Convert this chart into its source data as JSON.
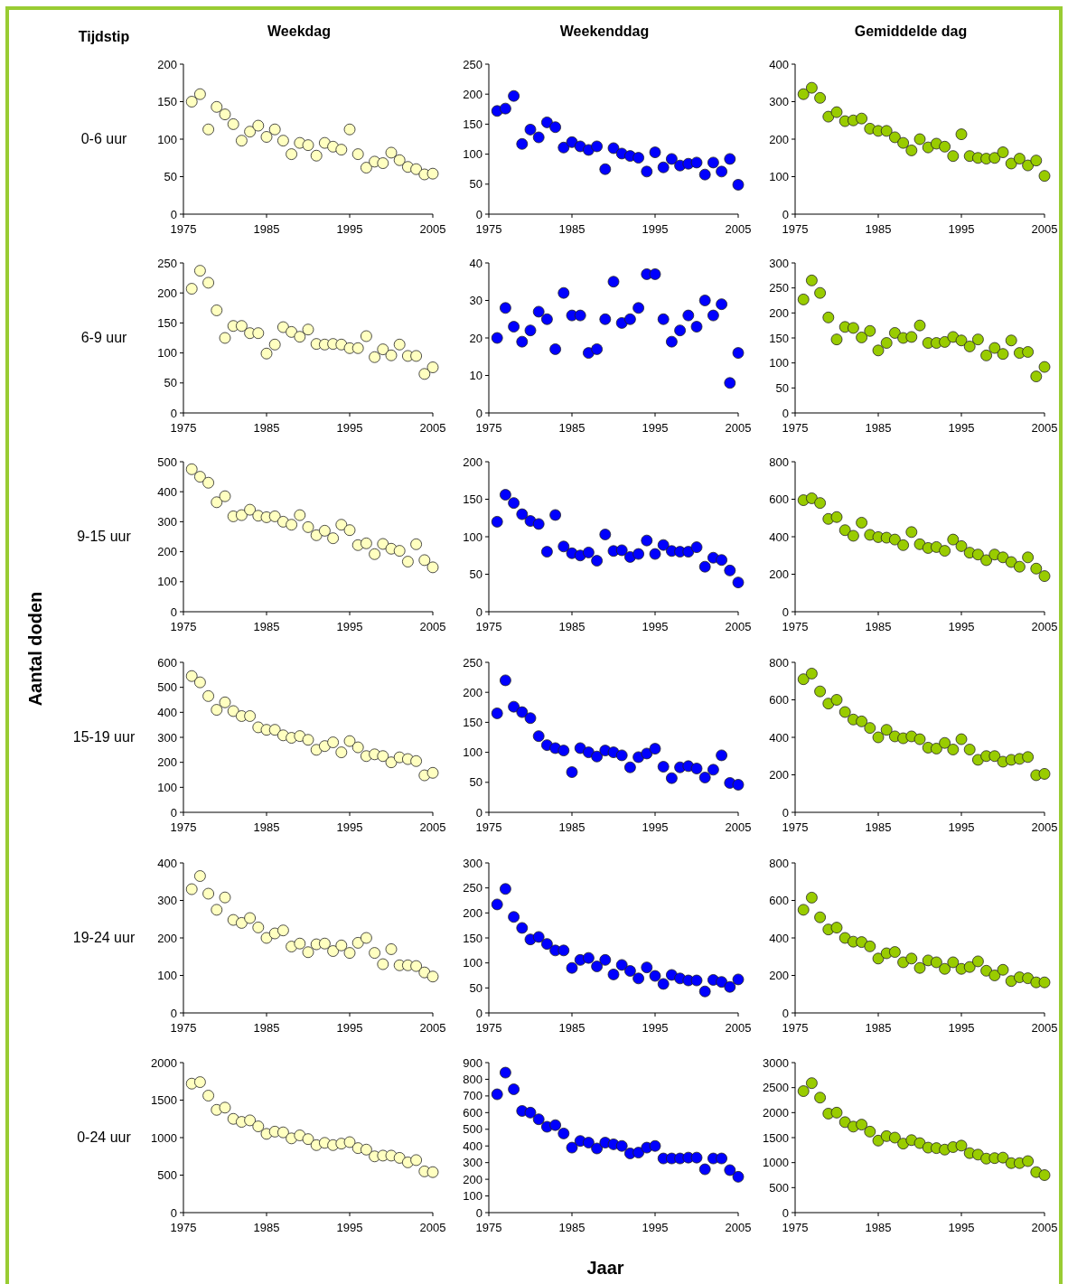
{
  "chart_data": [
    {
      "type": "scatter",
      "title": "Weekdag",
      "ylabel": "0-6 uur",
      "annotations": [
        "Tijdstip",
        "Aantal doden",
        "Jaar"
      ],
      "marker": "circle",
      "xlim": [
        1975,
        2005
      ],
      "xticks": [
        1975,
        1985,
        1995,
        2005
      ],
      "ylim": [
        0,
        200
      ],
      "yticks": [
        0,
        50,
        100,
        150,
        200
      ],
      "x": [
        1976,
        1977,
        1978,
        1979,
        1980,
        1981,
        1982,
        1983,
        1984,
        1985,
        1986,
        1987,
        1988,
        1989,
        1990,
        1991,
        1992,
        1993,
        1994,
        1995,
        1996,
        1997,
        1998,
        1999,
        2000,
        2001,
        2002,
        2003,
        2004,
        2005
      ],
      "color": "#ffffc0",
      "values": [
        150,
        160,
        113,
        143,
        133,
        120,
        98,
        110,
        118,
        103,
        113,
        98,
        80,
        95,
        92,
        78,
        95,
        90,
        86,
        113,
        80,
        62,
        70,
        68,
        82,
        72,
        63,
        60,
        53,
        54
      ]
    },
    {
      "type": "scatter",
      "title": "Weekenddag",
      "marker": "circle",
      "xlim": [
        1975,
        2005
      ],
      "xticks": [
        1975,
        1985,
        1995,
        2005
      ],
      "ylim": [
        0,
        250
      ],
      "yticks": [
        0,
        50,
        100,
        150,
        200,
        250
      ],
      "x": [
        1976,
        1977,
        1978,
        1979,
        1980,
        1981,
        1982,
        1983,
        1984,
        1985,
        1986,
        1987,
        1988,
        1989,
        1990,
        1991,
        1992,
        1993,
        1994,
        1995,
        1996,
        1997,
        1998,
        1999,
        2000,
        2001,
        2002,
        2003,
        2004,
        2005
      ],
      "color": "#0000ff",
      "values": [
        172,
        176,
        197,
        117,
        141,
        128,
        153,
        145,
        111,
        120,
        113,
        107,
        113,
        75,
        110,
        101,
        97,
        94,
        71,
        103,
        78,
        92,
        81,
        84,
        86,
        66,
        86,
        71,
        92,
        49
      ]
    },
    {
      "type": "scatter",
      "title": "Gemiddelde dag",
      "marker": "circle",
      "xlim": [
        1975,
        2005
      ],
      "xticks": [
        1975,
        1985,
        1995,
        2005
      ],
      "ylim": [
        0,
        400
      ],
      "yticks": [
        0,
        100,
        200,
        300,
        400
      ],
      "x": [
        1976,
        1977,
        1978,
        1979,
        1980,
        1981,
        1982,
        1983,
        1984,
        1985,
        1986,
        1987,
        1988,
        1989,
        1990,
        1991,
        1992,
        1993,
        1994,
        1995,
        1996,
        1997,
        1998,
        1999,
        2000,
        2001,
        2002,
        2003,
        2004,
        2005
      ],
      "color": "#99cc00",
      "values": [
        320,
        337,
        310,
        260,
        272,
        248,
        250,
        255,
        228,
        222,
        222,
        205,
        190,
        170,
        200,
        178,
        188,
        180,
        155,
        213,
        155,
        150,
        148,
        150,
        165,
        135,
        148,
        130,
        143,
        102
      ]
    },
    {
      "type": "scatter",
      "ylabel": "6-9 uur",
      "marker": "circle",
      "xlim": [
        1975,
        2005
      ],
      "xticks": [
        1975,
        1985,
        1995,
        2005
      ],
      "ylim": [
        0,
        250
      ],
      "yticks": [
        0,
        50,
        100,
        150,
        200,
        250
      ],
      "x": [
        1976,
        1977,
        1978,
        1979,
        1980,
        1981,
        1982,
        1983,
        1984,
        1985,
        1986,
        1987,
        1988,
        1989,
        1990,
        1991,
        1992,
        1993,
        1994,
        1995,
        1996,
        1997,
        1998,
        1999,
        2000,
        2001,
        2002,
        2003,
        2004,
        2005
      ],
      "color": "#ffffc0",
      "values": [
        207,
        237,
        217,
        171,
        125,
        145,
        145,
        133,
        133,
        99,
        114,
        143,
        135,
        127,
        139,
        115,
        114,
        115,
        114,
        108,
        108,
        128,
        93,
        106,
        96,
        114,
        95,
        95,
        65,
        76
      ]
    },
    {
      "type": "scatter",
      "marker": "circle",
      "xlim": [
        1975,
        2005
      ],
      "xticks": [
        1975,
        1985,
        1995,
        2005
      ],
      "ylim": [
        0,
        40
      ],
      "yticks": [
        0,
        10,
        20,
        30,
        40
      ],
      "x": [
        1976,
        1977,
        1978,
        1979,
        1980,
        1981,
        1982,
        1983,
        1984,
        1985,
        1986,
        1987,
        1988,
        1989,
        1990,
        1991,
        1992,
        1993,
        1994,
        1995,
        1996,
        1997,
        1998,
        1999,
        2000,
        2001,
        2002,
        2003,
        2004,
        2005
      ],
      "color": "#0000ff",
      "values": [
        20,
        28,
        23,
        19,
        22,
        27,
        25,
        17,
        32,
        26,
        26,
        16,
        17,
        25,
        35,
        24,
        25,
        28,
        37,
        37,
        25,
        19,
        22,
        26,
        23,
        30,
        26,
        29,
        8,
        16
      ]
    },
    {
      "type": "scatter",
      "marker": "circle",
      "xlim": [
        1975,
        2005
      ],
      "xticks": [
        1975,
        1985,
        1995,
        2005
      ],
      "ylim": [
        0,
        300
      ],
      "yticks": [
        0,
        50,
        100,
        150,
        200,
        250,
        300
      ],
      "x": [
        1976,
        1977,
        1978,
        1979,
        1980,
        1981,
        1982,
        1983,
        1984,
        1985,
        1986,
        1987,
        1988,
        1989,
        1990,
        1991,
        1992,
        1993,
        1994,
        1995,
        1996,
        1997,
        1998,
        1999,
        2000,
        2001,
        2002,
        2003,
        2004,
        2005
      ],
      "color": "#99cc00",
      "values": [
        227,
        265,
        240,
        191,
        147,
        172,
        170,
        151,
        164,
        125,
        140,
        160,
        150,
        152,
        175,
        140,
        140,
        142,
        152,
        145,
        133,
        147,
        115,
        130,
        118,
        145,
        120,
        122,
        73,
        92
      ]
    },
    {
      "type": "scatter",
      "ylabel": "9-15 uur",
      "marker": "circle",
      "xlim": [
        1975,
        2005
      ],
      "xticks": [
        1975,
        1985,
        1995,
        2005
      ],
      "ylim": [
        0,
        500
      ],
      "yticks": [
        0,
        100,
        200,
        300,
        400,
        500
      ],
      "x": [
        1976,
        1977,
        1978,
        1979,
        1980,
        1981,
        1982,
        1983,
        1984,
        1985,
        1986,
        1987,
        1988,
        1989,
        1990,
        1991,
        1992,
        1993,
        1994,
        1995,
        1996,
        1997,
        1998,
        1999,
        2000,
        2001,
        2002,
        2003,
        2004,
        2005
      ],
      "color": "#ffffc0",
      "values": [
        475,
        450,
        430,
        365,
        385,
        318,
        322,
        340,
        320,
        315,
        318,
        300,
        290,
        322,
        282,
        255,
        270,
        245,
        290,
        272,
        222,
        228,
        192,
        226,
        210,
        203,
        167,
        225,
        172,
        148
      ]
    },
    {
      "type": "scatter",
      "marker": "circle",
      "xlim": [
        1975,
        2005
      ],
      "xticks": [
        1975,
        1985,
        1995,
        2005
      ],
      "ylim": [
        0,
        200
      ],
      "yticks": [
        0,
        50,
        100,
        150,
        200
      ],
      "x": [
        1976,
        1977,
        1978,
        1979,
        1980,
        1981,
        1982,
        1983,
        1984,
        1985,
        1986,
        1987,
        1988,
        1989,
        1990,
        1991,
        1992,
        1993,
        1994,
        1995,
        1996,
        1997,
        1998,
        1999,
        2000,
        2001,
        2002,
        2003,
        2004,
        2005
      ],
      "color": "#0000ff",
      "values": [
        120,
        156,
        145,
        130,
        121,
        117,
        80,
        129,
        87,
        78,
        75,
        79,
        68,
        103,
        81,
        82,
        73,
        77,
        95,
        77,
        89,
        81,
        80,
        80,
        86,
        60,
        72,
        69,
        55,
        39
      ]
    },
    {
      "type": "scatter",
      "marker": "circle",
      "xlim": [
        1975,
        2005
      ],
      "xticks": [
        1975,
        1985,
        1995,
        2005
      ],
      "ylim": [
        0,
        800
      ],
      "yticks": [
        0,
        200,
        400,
        600,
        800
      ],
      "x": [
        1976,
        1977,
        1978,
        1979,
        1980,
        1981,
        1982,
        1983,
        1984,
        1985,
        1986,
        1987,
        1988,
        1989,
        1990,
        1991,
        1992,
        1993,
        1994,
        1995,
        1996,
        1997,
        1998,
        1999,
        2000,
        2001,
        2002,
        2003,
        2004,
        2005
      ],
      "color": "#99cc00",
      "values": [
        595,
        605,
        580,
        495,
        505,
        435,
        405,
        475,
        410,
        398,
        395,
        385,
        355,
        425,
        360,
        340,
        345,
        325,
        385,
        350,
        315,
        305,
        275,
        305,
        290,
        265,
        240,
        290,
        230,
        190
      ]
    },
    {
      "type": "scatter",
      "ylabel": "15-19 uur",
      "marker": "circle",
      "xlim": [
        1975,
        2005
      ],
      "xticks": [
        1975,
        1985,
        1995,
        2005
      ],
      "ylim": [
        0,
        600
      ],
      "yticks": [
        0,
        100,
        200,
        300,
        400,
        500,
        600
      ],
      "x": [
        1976,
        1977,
        1978,
        1979,
        1980,
        1981,
        1982,
        1983,
        1984,
        1985,
        1986,
        1987,
        1988,
        1989,
        1990,
        1991,
        1992,
        1993,
        1994,
        1995,
        1996,
        1997,
        1998,
        1999,
        2000,
        2001,
        2002,
        2003,
        2004,
        2005
      ],
      "color": "#ffffc0",
      "values": [
        545,
        520,
        465,
        410,
        440,
        405,
        385,
        385,
        340,
        330,
        330,
        308,
        298,
        305,
        290,
        250,
        265,
        280,
        240,
        285,
        260,
        225,
        232,
        225,
        200,
        220,
        213,
        205,
        148,
        158
      ]
    },
    {
      "type": "scatter",
      "marker": "circle",
      "xlim": [
        1975,
        2005
      ],
      "xticks": [
        1975,
        1985,
        1995,
        2005
      ],
      "ylim": [
        0,
        250
      ],
      "yticks": [
        0,
        50,
        100,
        150,
        200,
        250
      ],
      "x": [
        1976,
        1977,
        1978,
        1979,
        1980,
        1981,
        1982,
        1983,
        1984,
        1985,
        1986,
        1987,
        1988,
        1989,
        1990,
        1991,
        1992,
        1993,
        1994,
        1995,
        1996,
        1997,
        1998,
        1999,
        2000,
        2001,
        2002,
        2003,
        2004,
        2005
      ],
      "color": "#0000ff",
      "values": [
        165,
        220,
        176,
        167,
        157,
        127,
        112,
        107,
        103,
        67,
        107,
        100,
        93,
        103,
        100,
        95,
        75,
        92,
        98,
        106,
        76,
        57,
        75,
        77,
        73,
        58,
        71,
        95,
        49,
        46
      ]
    },
    {
      "type": "scatter",
      "marker": "circle",
      "xlim": [
        1975,
        2005
      ],
      "xticks": [
        1975,
        1985,
        1995,
        2005
      ],
      "ylim": [
        0,
        800
      ],
      "yticks": [
        0,
        200,
        400,
        600,
        800
      ],
      "x": [
        1976,
        1977,
        1978,
        1979,
        1980,
        1981,
        1982,
        1983,
        1984,
        1985,
        1986,
        1987,
        1988,
        1989,
        1990,
        1991,
        1992,
        1993,
        1994,
        1995,
        1996,
        1997,
        1998,
        1999,
        2000,
        2001,
        2002,
        2003,
        2004,
        2005
      ],
      "color": "#99cc00",
      "values": [
        710,
        740,
        645,
        580,
        600,
        535,
        495,
        485,
        450,
        400,
        440,
        405,
        395,
        405,
        390,
        345,
        340,
        370,
        335,
        390,
        335,
        280,
        300,
        300,
        270,
        280,
        285,
        295,
        198,
        205
      ]
    },
    {
      "type": "scatter",
      "ylabel": "19-24 uur",
      "marker": "circle",
      "xlim": [
        1975,
        2005
      ],
      "xticks": [
        1975,
        1985,
        1995,
        2005
      ],
      "ylim": [
        0,
        400
      ],
      "yticks": [
        0,
        100,
        200,
        300,
        400
      ],
      "x": [
        1976,
        1977,
        1978,
        1979,
        1980,
        1981,
        1982,
        1983,
        1984,
        1985,
        1986,
        1987,
        1988,
        1989,
        1990,
        1991,
        1992,
        1993,
        1994,
        1995,
        1996,
        1997,
        1998,
        1999,
        2000,
        2001,
        2002,
        2003,
        2004,
        2005
      ],
      "color": "#ffffc0",
      "values": [
        330,
        365,
        318,
        275,
        308,
        248,
        240,
        253,
        228,
        200,
        212,
        220,
        177,
        185,
        162,
        183,
        185,
        165,
        180,
        160,
        187,
        200,
        160,
        130,
        170,
        127,
        127,
        125,
        108,
        97
      ]
    },
    {
      "type": "scatter",
      "marker": "circle",
      "xlim": [
        1975,
        2005
      ],
      "xticks": [
        1975,
        1985,
        1995,
        2005
      ],
      "ylim": [
        0,
        300
      ],
      "yticks": [
        0,
        50,
        100,
        150,
        200,
        250,
        300
      ],
      "x": [
        1976,
        1977,
        1978,
        1979,
        1980,
        1981,
        1982,
        1983,
        1984,
        1985,
        1986,
        1987,
        1988,
        1989,
        1990,
        1991,
        1992,
        1993,
        1994,
        1995,
        1996,
        1997,
        1998,
        1999,
        2000,
        2001,
        2002,
        2003,
        2004,
        2005
      ],
      "color": "#0000ff",
      "values": [
        217,
        248,
        192,
        170,
        147,
        152,
        138,
        125,
        125,
        90,
        106,
        110,
        93,
        106,
        77,
        96,
        84,
        69,
        91,
        74,
        58,
        76,
        69,
        65,
        65,
        43,
        66,
        62,
        52,
        67
      ]
    },
    {
      "type": "scatter",
      "marker": "circle",
      "xlim": [
        1975,
        2005
      ],
      "xticks": [
        1975,
        1985,
        1995,
        2005
      ],
      "ylim": [
        0,
        800
      ],
      "yticks": [
        0,
        200,
        400,
        600,
        800
      ],
      "x": [
        1976,
        1977,
        1978,
        1979,
        1980,
        1981,
        1982,
        1983,
        1984,
        1985,
        1986,
        1987,
        1988,
        1989,
        1990,
        1991,
        1992,
        1993,
        1994,
        1995,
        1996,
        1997,
        1998,
        1999,
        2000,
        2001,
        2002,
        2003,
        2004,
        2005
      ],
      "color": "#99cc00",
      "values": [
        550,
        615,
        510,
        445,
        455,
        400,
        380,
        378,
        355,
        290,
        318,
        325,
        270,
        290,
        240,
        280,
        270,
        235,
        270,
        235,
        245,
        275,
        225,
        200,
        230,
        170,
        190,
        185,
        163,
        163
      ]
    },
    {
      "type": "scatter",
      "ylabel": "0-24 uur",
      "marker": "circle",
      "xlim": [
        1975,
        2005
      ],
      "xticks": [
        1975,
        1985,
        1995,
        2005
      ],
      "ylim": [
        0,
        2000
      ],
      "yticks": [
        0,
        500,
        1000,
        1500,
        2000
      ],
      "x": [
        1976,
        1977,
        1978,
        1979,
        1980,
        1981,
        1982,
        1983,
        1984,
        1985,
        1986,
        1987,
        1988,
        1989,
        1990,
        1991,
        1992,
        1993,
        1994,
        1995,
        1996,
        1997,
        1998,
        1999,
        2000,
        2001,
        2002,
        2003,
        2004,
        2005
      ],
      "color": "#ffffc0",
      "values": [
        1720,
        1740,
        1560,
        1370,
        1400,
        1250,
        1210,
        1230,
        1150,
        1050,
        1080,
        1070,
        990,
        1030,
        980,
        900,
        930,
        900,
        920,
        940,
        860,
        840,
        750,
        760,
        760,
        730,
        670,
        700,
        550,
        540
      ]
    },
    {
      "type": "scatter",
      "marker": "circle",
      "xlim": [
        1975,
        2005
      ],
      "xticks": [
        1975,
        1985,
        1995,
        2005
      ],
      "ylim": [
        0,
        900
      ],
      "yticks": [
        0,
        100,
        200,
        300,
        400,
        500,
        600,
        700,
        800,
        900
      ],
      "x": [
        1976,
        1977,
        1978,
        1979,
        1980,
        1981,
        1982,
        1983,
        1984,
        1985,
        1986,
        1987,
        1988,
        1989,
        1990,
        1991,
        1992,
        1993,
        1994,
        1995,
        1996,
        1997,
        1998,
        1999,
        2000,
        2001,
        2002,
        2003,
        2004,
        2005
      ],
      "color": "#0000ff",
      "values": [
        710,
        840,
        740,
        610,
        600,
        560,
        515,
        525,
        475,
        390,
        430,
        420,
        385,
        420,
        410,
        400,
        355,
        360,
        390,
        400,
        325,
        325,
        325,
        330,
        330,
        260,
        325,
        325,
        255,
        215
      ]
    },
    {
      "type": "scatter",
      "marker": "circle",
      "xlim": [
        1975,
        2005
      ],
      "xticks": [
        1975,
        1985,
        1995,
        2005
      ],
      "ylim": [
        0,
        3000
      ],
      "yticks": [
        0,
        500,
        1000,
        1500,
        2000,
        2500,
        3000
      ],
      "x": [
        1976,
        1977,
        1978,
        1979,
        1980,
        1981,
        1982,
        1983,
        1984,
        1985,
        1986,
        1987,
        1988,
        1989,
        1990,
        1991,
        1992,
        1993,
        1994,
        1995,
        1996,
        1997,
        1998,
        1999,
        2000,
        2001,
        2002,
        2003,
        2004,
        2005
      ],
      "color": "#99cc00",
      "values": [
        2430,
        2590,
        2300,
        1980,
        2000,
        1810,
        1720,
        1760,
        1620,
        1440,
        1530,
        1500,
        1380,
        1450,
        1390,
        1300,
        1290,
        1260,
        1310,
        1340,
        1190,
        1160,
        1080,
        1090,
        1100,
        990,
        990,
        1030,
        810,
        750
      ]
    }
  ]
}
